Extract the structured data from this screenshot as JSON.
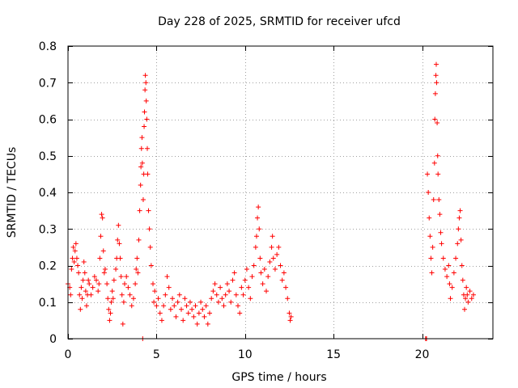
{
  "chart_data": {
    "type": "scatter",
    "title": "Day 228 of 2025, SRMTID for receiver ufcd",
    "xlabel": "GPS time / hours",
    "ylabel": "SRMTID / TECUs",
    "xlim": [
      0,
      24
    ],
    "ylim": [
      0,
      0.8
    ],
    "xticks": [
      0,
      5,
      10,
      15,
      20
    ],
    "xtick_labels": [
      "0",
      "5",
      "10",
      "15",
      "20"
    ],
    "yticks": [
      0,
      0.1,
      0.2,
      0.3,
      0.4,
      0.5,
      0.6,
      0.7,
      0.8
    ],
    "ytick_labels": [
      "0",
      "0.1",
      "0.2",
      "0.3",
      "0.4",
      "0.5",
      "0.6",
      "0.7",
      "0.8"
    ],
    "grid": true,
    "marker": "plus",
    "colors": {
      "series": "#ff0000",
      "grid": "#a0a0a0",
      "axis": "#000000"
    },
    "series": [
      {
        "name": "SRMTID",
        "points": [
          [
            0.0,
            0.15
          ],
          [
            0.1,
            0.14
          ],
          [
            0.15,
            0.12
          ],
          [
            0.2,
            0.19
          ],
          [
            0.25,
            0.22
          ],
          [
            0.3,
            0.25
          ],
          [
            0.35,
            0.21
          ],
          [
            0.4,
            0.24
          ],
          [
            0.45,
            0.26
          ],
          [
            0.5,
            0.22
          ],
          [
            0.55,
            0.2
          ],
          [
            0.6,
            0.18
          ],
          [
            0.65,
            0.12
          ],
          [
            0.7,
            0.08
          ],
          [
            0.75,
            0.14
          ],
          [
            0.8,
            0.11
          ],
          [
            0.85,
            0.16
          ],
          [
            0.9,
            0.21
          ],
          [
            0.95,
            0.18
          ],
          [
            1.0,
            0.13
          ],
          [
            1.05,
            0.09
          ],
          [
            1.1,
            0.12
          ],
          [
            1.15,
            0.16
          ],
          [
            1.2,
            0.15
          ],
          [
            1.3,
            0.12
          ],
          [
            1.4,
            0.14
          ],
          [
            1.5,
            0.17
          ],
          [
            1.6,
            0.16
          ],
          [
            1.7,
            0.13
          ],
          [
            1.75,
            0.15
          ],
          [
            1.8,
            0.22
          ],
          [
            1.85,
            0.28
          ],
          [
            1.9,
            0.34
          ],
          [
            1.95,
            0.33
          ],
          [
            2.0,
            0.24
          ],
          [
            2.05,
            0.18
          ],
          [
            2.1,
            0.19
          ],
          [
            2.2,
            0.15
          ],
          [
            2.25,
            0.11
          ],
          [
            2.3,
            0.08
          ],
          [
            2.35,
            0.05
          ],
          [
            2.4,
            0.07
          ],
          [
            2.45,
            0.1
          ],
          [
            2.5,
            0.13
          ],
          [
            2.55,
            0.11
          ],
          [
            2.6,
            0.16
          ],
          [
            2.7,
            0.19
          ],
          [
            2.75,
            0.22
          ],
          [
            2.8,
            0.27
          ],
          [
            2.85,
            0.31
          ],
          [
            2.9,
            0.26
          ],
          [
            2.95,
            0.22
          ],
          [
            3.0,
            0.17
          ],
          [
            3.05,
            0.12
          ],
          [
            3.1,
            0.04
          ],
          [
            3.15,
            0.1
          ],
          [
            3.2,
            0.15
          ],
          [
            3.3,
            0.17
          ],
          [
            3.4,
            0.14
          ],
          [
            3.5,
            0.12
          ],
          [
            3.6,
            0.09
          ],
          [
            3.7,
            0.11
          ],
          [
            3.8,
            0.15
          ],
          [
            3.85,
            0.19
          ],
          [
            3.9,
            0.22
          ],
          [
            3.95,
            0.18
          ],
          [
            4.0,
            0.27
          ],
          [
            4.05,
            0.35
          ],
          [
            4.1,
            0.42
          ],
          [
            4.12,
            0.47
          ],
          [
            4.15,
            0.52
          ],
          [
            4.18,
            0.55
          ],
          [
            4.2,
            0.48
          ],
          [
            4.22,
            0.0
          ],
          [
            4.25,
            0.38
          ],
          [
            4.28,
            0.45
          ],
          [
            4.3,
            0.58
          ],
          [
            4.32,
            0.62
          ],
          [
            4.35,
            0.68
          ],
          [
            4.37,
            0.72
          ],
          [
            4.4,
            0.7
          ],
          [
            4.42,
            0.65
          ],
          [
            4.45,
            0.6
          ],
          [
            4.48,
            0.52
          ],
          [
            4.5,
            0.45
          ],
          [
            4.55,
            0.35
          ],
          [
            4.6,
            0.3
          ],
          [
            4.65,
            0.25
          ],
          [
            4.7,
            0.2
          ],
          [
            4.8,
            0.15
          ],
          [
            4.85,
            0.1
          ],
          [
            4.9,
            0.13
          ],
          [
            5.0,
            0.09
          ],
          [
            5.1,
            0.11
          ],
          [
            5.2,
            0.07
          ],
          [
            5.3,
            0.05
          ],
          [
            5.4,
            0.09
          ],
          [
            5.5,
            0.12
          ],
          [
            5.6,
            0.17
          ],
          [
            5.7,
            0.14
          ],
          [
            5.8,
            0.08
          ],
          [
            5.9,
            0.11
          ],
          [
            6.0,
            0.09
          ],
          [
            6.1,
            0.06
          ],
          [
            6.2,
            0.1
          ],
          [
            6.3,
            0.12
          ],
          [
            6.4,
            0.08
          ],
          [
            6.5,
            0.05
          ],
          [
            6.6,
            0.11
          ],
          [
            6.7,
            0.09
          ],
          [
            6.8,
            0.07
          ],
          [
            6.9,
            0.1
          ],
          [
            7.0,
            0.08
          ],
          [
            7.1,
            0.06
          ],
          [
            7.2,
            0.09
          ],
          [
            7.3,
            0.04
          ],
          [
            7.4,
            0.07
          ],
          [
            7.5,
            0.1
          ],
          [
            7.6,
            0.08
          ],
          [
            7.7,
            0.06
          ],
          [
            7.8,
            0.09
          ],
          [
            7.9,
            0.04
          ],
          [
            8.0,
            0.07
          ],
          [
            8.1,
            0.11
          ],
          [
            8.2,
            0.13
          ],
          [
            8.3,
            0.15
          ],
          [
            8.4,
            0.12
          ],
          [
            8.5,
            0.1
          ],
          [
            8.6,
            0.14
          ],
          [
            8.7,
            0.11
          ],
          [
            8.8,
            0.09
          ],
          [
            8.9,
            0.12
          ],
          [
            9.0,
            0.15
          ],
          [
            9.1,
            0.13
          ],
          [
            9.2,
            0.1
          ],
          [
            9.3,
            0.16
          ],
          [
            9.4,
            0.18
          ],
          [
            9.5,
            0.12
          ],
          [
            9.6,
            0.09
          ],
          [
            9.7,
            0.07
          ],
          [
            9.8,
            0.14
          ],
          [
            9.9,
            0.12
          ],
          [
            10.0,
            0.16
          ],
          [
            10.1,
            0.19
          ],
          [
            10.2,
            0.14
          ],
          [
            10.3,
            0.11
          ],
          [
            10.4,
            0.17
          ],
          [
            10.5,
            0.2
          ],
          [
            10.6,
            0.25
          ],
          [
            10.65,
            0.28
          ],
          [
            10.7,
            0.33
          ],
          [
            10.75,
            0.36
          ],
          [
            10.8,
            0.3
          ],
          [
            10.85,
            0.22
          ],
          [
            10.9,
            0.18
          ],
          [
            11.0,
            0.15
          ],
          [
            11.1,
            0.19
          ],
          [
            11.2,
            0.13
          ],
          [
            11.3,
            0.17
          ],
          [
            11.4,
            0.21
          ],
          [
            11.5,
            0.25
          ],
          [
            11.55,
            0.28
          ],
          [
            11.6,
            0.22
          ],
          [
            11.7,
            0.19
          ],
          [
            11.8,
            0.23
          ],
          [
            11.9,
            0.25
          ],
          [
            12.0,
            0.2
          ],
          [
            12.1,
            0.16
          ],
          [
            12.2,
            0.18
          ],
          [
            12.3,
            0.14
          ],
          [
            12.4,
            0.11
          ],
          [
            12.5,
            0.07
          ],
          [
            12.55,
            0.05
          ],
          [
            12.6,
            0.06
          ],
          [
            20.2,
            0.0
          ],
          [
            20.25,
            0.0
          ],
          [
            20.3,
            0.45
          ],
          [
            20.35,
            0.4
          ],
          [
            20.4,
            0.33
          ],
          [
            20.45,
            0.28
          ],
          [
            20.5,
            0.22
          ],
          [
            20.55,
            0.18
          ],
          [
            20.6,
            0.25
          ],
          [
            20.65,
            0.38
          ],
          [
            20.7,
            0.48
          ],
          [
            20.72,
            0.6
          ],
          [
            20.75,
            0.67
          ],
          [
            20.78,
            0.72
          ],
          [
            20.8,
            0.75
          ],
          [
            20.82,
            0.7
          ],
          [
            20.85,
            0.59
          ],
          [
            20.88,
            0.5
          ],
          [
            20.9,
            0.45
          ],
          [
            20.95,
            0.38
          ],
          [
            21.0,
            0.34
          ],
          [
            21.05,
            0.29
          ],
          [
            21.1,
            0.26
          ],
          [
            21.2,
            0.22
          ],
          [
            21.3,
            0.19
          ],
          [
            21.4,
            0.17
          ],
          [
            21.5,
            0.2
          ],
          [
            21.55,
            0.15
          ],
          [
            21.6,
            0.11
          ],
          [
            21.7,
            0.14
          ],
          [
            21.8,
            0.18
          ],
          [
            21.9,
            0.22
          ],
          [
            22.0,
            0.26
          ],
          [
            22.05,
            0.3
          ],
          [
            22.1,
            0.33
          ],
          [
            22.15,
            0.35
          ],
          [
            22.2,
            0.27
          ],
          [
            22.25,
            0.2
          ],
          [
            22.3,
            0.16
          ],
          [
            22.35,
            0.12
          ],
          [
            22.4,
            0.08
          ],
          [
            22.45,
            0.11
          ],
          [
            22.5,
            0.14
          ],
          [
            22.55,
            0.12
          ],
          [
            22.6,
            0.1
          ],
          [
            22.7,
            0.13
          ],
          [
            22.8,
            0.11
          ],
          [
            22.9,
            0.12
          ]
        ]
      }
    ]
  }
}
